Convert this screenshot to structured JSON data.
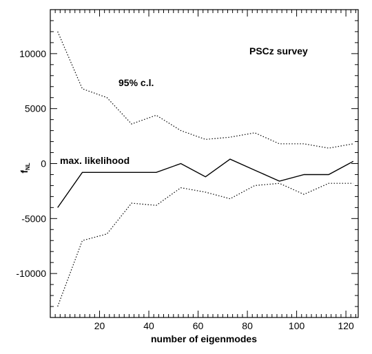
{
  "chart_data": {
    "type": "line",
    "title": "",
    "xlabel": "number of eigenmodes",
    "ylabel": "f",
    "ylabel_subscript": "NL",
    "xlim": [
      0,
      125
    ],
    "ylim": [
      -14000,
      14000
    ],
    "xticks": [
      20,
      40,
      60,
      80,
      100,
      120
    ],
    "yticks": [
      -10000,
      -5000,
      0,
      5000,
      10000
    ],
    "annotations": [
      "PSCz survey",
      "95% c.l.",
      "max. likelihood"
    ],
    "series": [
      {
        "name": "max. likelihood",
        "style": "solid",
        "x": [
          3,
          13,
          23,
          33,
          43,
          53,
          63,
          73,
          83,
          93,
          103,
          113,
          123
        ],
        "y": [
          -4000,
          -800,
          -800,
          -800,
          -800,
          0,
          -1200,
          400,
          -600,
          -1600,
          -1000,
          -1000,
          200
        ]
      },
      {
        "name": "95% c.l.",
        "style": "dotted",
        "x": [
          3,
          13,
          23,
          33,
          43,
          53,
          63,
          73,
          83,
          93,
          103,
          113,
          123
        ],
        "y": [
          12000,
          6800,
          6000,
          3600,
          4400,
          3000,
          2200,
          2400,
          2800,
          1800,
          1800,
          1400,
          1800
        ]
      },
      {
        "name": "95% c.l. lower",
        "style": "dotted",
        "x": [
          3,
          13,
          23,
          33,
          43,
          53,
          63,
          73,
          83,
          93,
          103,
          113,
          123
        ],
        "y": [
          -13000,
          -7000,
          -6400,
          -3600,
          -3800,
          -2200,
          -2600,
          -3200,
          -2000,
          -1800,
          -2800,
          -1800,
          -1800
        ]
      }
    ]
  }
}
